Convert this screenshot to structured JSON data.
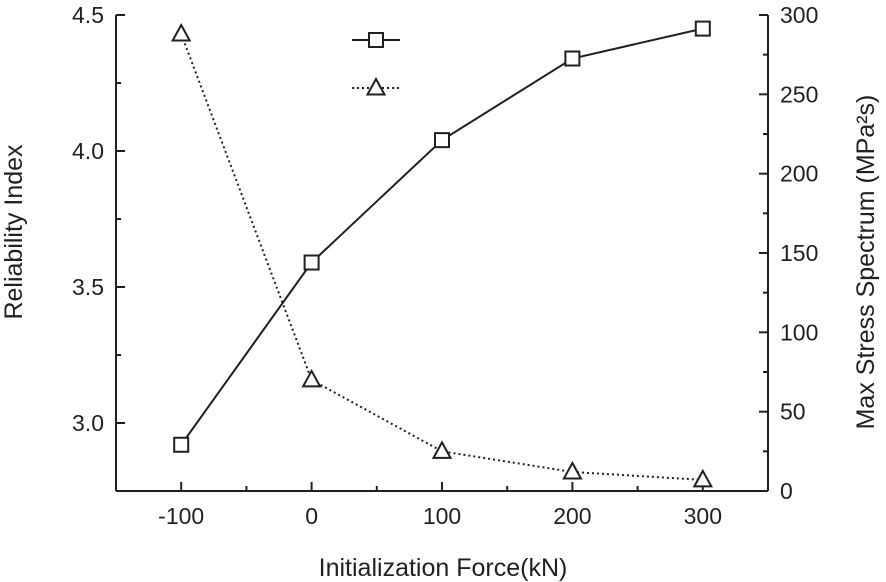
{
  "chart_data": {
    "type": "line",
    "x": [
      -100,
      0,
      100,
      200,
      300
    ],
    "xlabel": "Initialization Force(kN)",
    "ylabel": "Reliability Index",
    "y2label": "Max Stress Spectrum (MPa²s)",
    "xlim": [
      -150,
      350
    ],
    "ylim": [
      2.75,
      4.5
    ],
    "y2lim": [
      0,
      300
    ],
    "xticks": [
      "-100",
      "0",
      "100",
      "200",
      "300"
    ],
    "yticks": [
      "3.0",
      "3.5",
      "4.0",
      "4.5"
    ],
    "y2ticks": [
      "0",
      "50",
      "100",
      "150",
      "200",
      "250",
      "300"
    ],
    "grid": false,
    "legend_position": "top-center",
    "series": [
      {
        "axis": "left",
        "marker": "square",
        "line_style": "solid",
        "color": "#231f20",
        "values": [
          2.92,
          3.59,
          4.04,
          4.34,
          4.45
        ]
      },
      {
        "axis": "right",
        "marker": "triangle",
        "line_style": "dotted",
        "color": "#231f20",
        "values": [
          288,
          70,
          25,
          12,
          7
        ]
      }
    ]
  }
}
